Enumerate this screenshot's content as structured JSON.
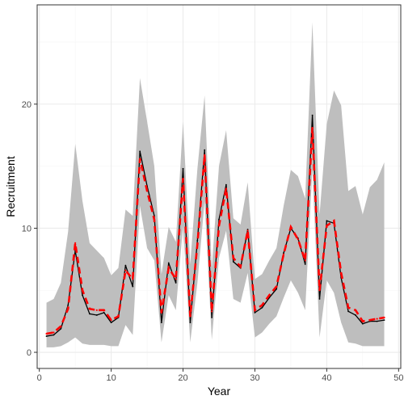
{
  "chart_data": {
    "type": "line",
    "xlabel": "Year",
    "ylabel": "Recruitment",
    "xlim": [
      -0.3,
      50.3
    ],
    "ylim": [
      -1.3,
      28
    ],
    "xticks": [
      0,
      10,
      20,
      30,
      40,
      50
    ],
    "yticks": [
      0,
      10,
      20
    ],
    "grid": true,
    "colors": {
      "observed": "#000000",
      "estimate": "#ff0000",
      "band": "#bebebe",
      "grid_major": "#ebebeb",
      "grid_minor": "#f5f5f5",
      "panel_border": "#333333"
    },
    "x": [
      1,
      2,
      3,
      4,
      5,
      6,
      7,
      8,
      9,
      10,
      11,
      12,
      13,
      14,
      15,
      16,
      17,
      18,
      19,
      20,
      21,
      22,
      23,
      24,
      25,
      26,
      27,
      28,
      29,
      30,
      31,
      32,
      33,
      34,
      35,
      36,
      37,
      38,
      39,
      40,
      41,
      42,
      43,
      44,
      45,
      46,
      47,
      48
    ],
    "series": [
      {
        "role": "observed",
        "values": [
          1.3,
          1.4,
          1.9,
          3.8,
          8.2,
          4.6,
          3.1,
          3.0,
          3.2,
          2.4,
          2.8,
          7.0,
          5.3,
          16.2,
          13.4,
          11.0,
          2.4,
          7.2,
          5.6,
          14.8,
          2.4,
          9.0,
          16.3,
          2.8,
          10.7,
          13.5,
          7.3,
          6.8,
          9.9,
          3.2,
          3.6,
          4.4,
          5.1,
          8.0,
          10.0,
          9.2,
          7.1,
          19.1,
          4.3,
          10.6,
          10.4,
          6.0,
          3.3,
          3.0,
          2.3,
          2.5,
          2.5,
          2.6
        ]
      },
      {
        "role": "estimate",
        "values": [
          1.5,
          1.6,
          2.1,
          3.5,
          8.8,
          5.0,
          3.5,
          3.4,
          3.4,
          2.6,
          2.9,
          6.6,
          5.9,
          15.6,
          13.0,
          10.7,
          3.2,
          6.8,
          5.9,
          14.0,
          2.9,
          8.7,
          15.9,
          3.3,
          10.2,
          13.2,
          7.6,
          6.9,
          9.8,
          3.4,
          3.8,
          4.6,
          5.3,
          7.9,
          10.1,
          9.1,
          7.4,
          18.1,
          5.0,
          10.2,
          10.6,
          6.4,
          3.6,
          3.4,
          2.5,
          2.6,
          2.7,
          2.8
        ]
      },
      {
        "role": "band",
        "lower": [
          0.4,
          0.4,
          0.5,
          0.8,
          1.2,
          0.7,
          0.6,
          0.6,
          0.6,
          0.5,
          0.5,
          2.2,
          1.4,
          11.8,
          8.4,
          7.4,
          0.8,
          4.6,
          3.4,
          10.2,
          0.8,
          5.6,
          12.2,
          1.0,
          7.6,
          9.8,
          4.3,
          4.0,
          6.4,
          1.2,
          1.6,
          2.3,
          2.9,
          4.4,
          5.8,
          4.8,
          3.4,
          14.8,
          1.2,
          5.8,
          4.8,
          2.4,
          0.8,
          0.7,
          0.5,
          0.5,
          0.5,
          0.5
        ],
        "upper": [
          4.0,
          4.3,
          5.6,
          9.7,
          16.8,
          12.2,
          8.8,
          8.2,
          7.6,
          6.2,
          6.8,
          11.5,
          11.0,
          22.1,
          18.6,
          15.0,
          6.3,
          10.1,
          8.9,
          18.6,
          7.1,
          14.8,
          20.7,
          6.8,
          15.0,
          17.9,
          10.8,
          10.3,
          13.7,
          5.9,
          6.3,
          7.4,
          8.4,
          11.8,
          14.7,
          14.2,
          12.4,
          26.6,
          11.1,
          18.4,
          21.1,
          19.9,
          13.0,
          13.4,
          11.1,
          13.3,
          13.9,
          15.3
        ]
      }
    ]
  }
}
